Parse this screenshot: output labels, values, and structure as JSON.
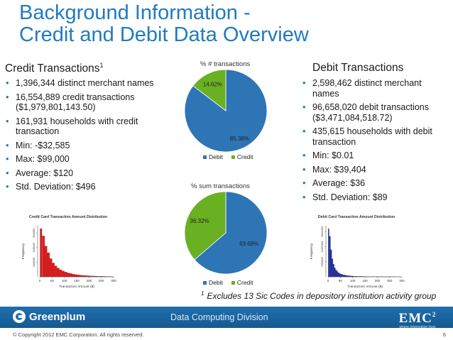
{
  "title": {
    "line1": "Background Information -",
    "line2": "Credit and Debit Data Overview"
  },
  "credit": {
    "heading": "Credit Transactions",
    "heading_sup": "1",
    "bullets": [
      "1,396,344 distinct merchant names",
      "16,554,889 credit transactions ($1,979,801,143.50)",
      "161,931 households with credit transaction",
      "Min: -$32,585",
      "Max: $99,000",
      "Average: $120",
      "Std. Deviation: $496"
    ]
  },
  "debit": {
    "heading": "Debit Transactions",
    "bullets": [
      "2,598,462 distinct merchant names",
      "96,658,020 debit transactions ($3,471,084,518.72)",
      "435,615 households with debit transaction",
      "Min: $0.01",
      "Max: $39,404",
      "Average: $36",
      "Std. Deviation: $89"
    ]
  },
  "colors": {
    "title": "#1f7bbf",
    "debit": "#2e75b6",
    "credit": "#6ab023",
    "footer_bar": "#1f6fae",
    "credit_hist": "#e41a1c",
    "debit_hist": "#1f2fa8"
  },
  "chart_data": [
    {
      "type": "pie",
      "title": "% # transactions",
      "labels": [
        "Debit",
        "Credit"
      ],
      "values": [
        85.38,
        14.62
      ],
      "value_labels": [
        "85.38%",
        "14.62%"
      ],
      "legend": "bottom"
    },
    {
      "type": "pie",
      "title": "% sum transactions",
      "labels": [
        "Debit",
        "Credit"
      ],
      "values": [
        63.68,
        36.32
      ],
      "value_labels": [
        "63.68%",
        "36.32%"
      ],
      "legend": "bottom"
    },
    {
      "type": "bar",
      "title": "Credit Card Transaction Amount Distribution",
      "xlabel": "Transaction Amount ($)",
      "ylabel": "Frequency",
      "x_ticks": [
        "0",
        "50",
        "100",
        "150",
        "200",
        "250",
        "300"
      ],
      "y_ticks": [
        "100000",
        "200000",
        "300000"
      ],
      "bins": [
        {
          "x": 5,
          "y": 330000
        },
        {
          "x": 15,
          "y": 280000
        },
        {
          "x": 25,
          "y": 210000
        },
        {
          "x": 35,
          "y": 165000
        },
        {
          "x": 45,
          "y": 125000
        },
        {
          "x": 55,
          "y": 95000
        },
        {
          "x": 65,
          "y": 75000
        },
        {
          "x": 75,
          "y": 60000
        },
        {
          "x": 85,
          "y": 48000
        },
        {
          "x": 95,
          "y": 40000
        },
        {
          "x": 105,
          "y": 33000
        },
        {
          "x": 115,
          "y": 27000
        },
        {
          "x": 125,
          "y": 23000
        },
        {
          "x": 135,
          "y": 19000
        },
        {
          "x": 145,
          "y": 16000
        },
        {
          "x": 155,
          "y": 13500
        },
        {
          "x": 165,
          "y": 11500
        },
        {
          "x": 175,
          "y": 10000
        },
        {
          "x": 185,
          "y": 8500
        },
        {
          "x": 195,
          "y": 7500
        },
        {
          "x": 205,
          "y": 6500
        },
        {
          "x": 215,
          "y": 5500
        },
        {
          "x": 225,
          "y": 4800
        },
        {
          "x": 235,
          "y": 4200
        },
        {
          "x": 245,
          "y": 3600
        },
        {
          "x": 255,
          "y": 3100
        },
        {
          "x": 265,
          "y": 2700
        },
        {
          "x": 275,
          "y": 2300
        },
        {
          "x": 285,
          "y": 2000
        },
        {
          "x": 295,
          "y": 1800
        }
      ],
      "xlim": [
        0,
        300
      ],
      "ylim": [
        0,
        350000
      ]
    },
    {
      "type": "bar",
      "title": "Debit Card Transaction Amount Distribution",
      "xlabel": "Transaction Amount ($)",
      "ylabel": "Frequency",
      "x_ticks": [
        "0",
        "50",
        "100",
        "150",
        "200",
        "250",
        "300"
      ],
      "y_ticks": [
        "500000",
        "1000000",
        "1500000"
      ],
      "bins": [
        {
          "x": 2.5,
          "y": 1600000
        },
        {
          "x": 7.5,
          "y": 1350000
        },
        {
          "x": 12.5,
          "y": 900000
        },
        {
          "x": 17.5,
          "y": 600000
        },
        {
          "x": 22.5,
          "y": 420000
        },
        {
          "x": 27.5,
          "y": 300000
        },
        {
          "x": 32.5,
          "y": 230000
        },
        {
          "x": 37.5,
          "y": 180000
        },
        {
          "x": 42.5,
          "y": 140000
        },
        {
          "x": 47.5,
          "y": 110000
        },
        {
          "x": 55,
          "y": 85000
        },
        {
          "x": 65,
          "y": 62000
        },
        {
          "x": 75,
          "y": 46000
        },
        {
          "x": 85,
          "y": 35000
        },
        {
          "x": 95,
          "y": 27000
        },
        {
          "x": 110,
          "y": 20000
        },
        {
          "x": 130,
          "y": 14000
        },
        {
          "x": 150,
          "y": 10000
        },
        {
          "x": 170,
          "y": 7500
        },
        {
          "x": 190,
          "y": 5800
        },
        {
          "x": 210,
          "y": 4500
        },
        {
          "x": 230,
          "y": 3600
        },
        {
          "x": 250,
          "y": 2900
        },
        {
          "x": 270,
          "y": 2400
        },
        {
          "x": 290,
          "y": 2000
        }
      ],
      "xlim": [
        0,
        300
      ],
      "ylim": [
        0,
        1700000
      ]
    }
  ],
  "footnote": {
    "marker": "1",
    "text": "Excludes 13 Sic Codes in depository institution activity group"
  },
  "footer": {
    "brand": "Greenplum",
    "division": "Data Computing Division",
    "emc": "EMC",
    "emc_sup": "2",
    "emc_tagline": "where information lives",
    "copyright": "© Copyright 2012 EMC Corporation. All rights reserved.",
    "page": "6"
  }
}
